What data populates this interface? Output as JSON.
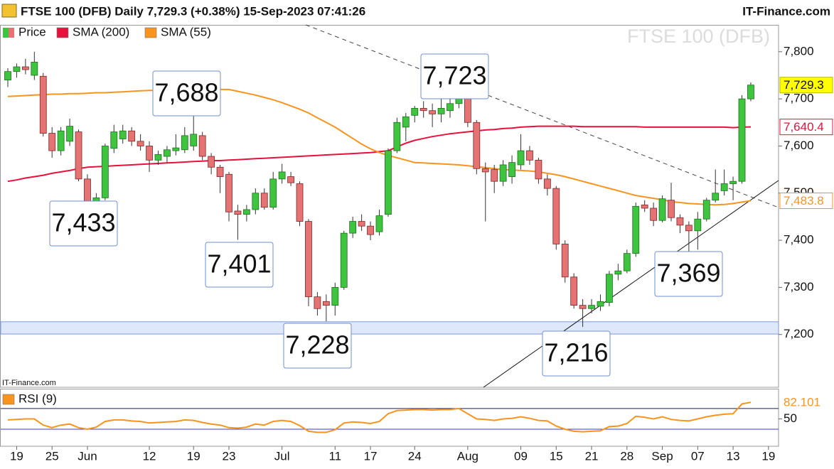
{
  "chart_data": [
    {
      "type": "candlestick",
      "title": "FTSE 100 (DFB) Daily 7,729.3 (+0.38%) 15-Sep-2023 07:41:26",
      "source": "IT-Finance.com",
      "watermark": "FTSE 100 (DFB)",
      "price_name": "Price",
      "last_label": "7,729.3",
      "up_color": "#3ec43e",
      "down_color": "#e57373",
      "categories": [
        null,
        "19",
        null,
        null,
        null,
        "25",
        null,
        null,
        null,
        "Jun",
        null,
        null,
        null,
        null,
        null,
        null,
        "12",
        null,
        null,
        null,
        null,
        "19",
        null,
        null,
        null,
        "23",
        null,
        null,
        null,
        null,
        null,
        "Jul",
        null,
        null,
        null,
        null,
        null,
        "11",
        null,
        null,
        null,
        "17",
        null,
        null,
        null,
        null,
        "24",
        null,
        null,
        null,
        null,
        null,
        "Aug",
        null,
        null,
        null,
        null,
        null,
        "09",
        null,
        null,
        null,
        "15",
        null,
        null,
        null,
        "21",
        null,
        null,
        null,
        "28",
        null,
        null,
        null,
        "Sep",
        null,
        null,
        null,
        "07",
        null,
        null,
        null,
        "13",
        null,
        null,
        null,
        "19"
      ],
      "ohlc": [
        [
          7740,
          7765,
          7725,
          7758
        ],
        [
          7758,
          7775,
          7745,
          7768
        ],
        [
          7768,
          7785,
          7752,
          7762
        ],
        [
          7750,
          7800,
          7740,
          7778
        ],
        [
          7748,
          7755,
          7620,
          7627
        ],
        [
          7627,
          7640,
          7575,
          7590
        ],
        [
          7590,
          7640,
          7580,
          7632
        ],
        [
          7610,
          7658,
          7600,
          7642
        ],
        [
          7630,
          7635,
          7525,
          7530
        ],
        [
          7530,
          7540,
          7433,
          7445
        ],
        [
          7445,
          7500,
          7440,
          7490
        ],
        [
          7490,
          7605,
          7485,
          7600
        ],
        [
          7595,
          7645,
          7585,
          7630
        ],
        [
          7615,
          7645,
          7605,
          7632
        ],
        [
          7632,
          7640,
          7600,
          7610
        ],
        [
          7610,
          7625,
          7590,
          7600
        ],
        [
          7600,
          7610,
          7545,
          7570
        ],
        [
          7570,
          7590,
          7560,
          7582
        ],
        [
          7578,
          7600,
          7565,
          7592
        ],
        [
          7590,
          7625,
          7580,
          7596
        ],
        [
          7592,
          7640,
          7585,
          7622
        ],
        [
          7600,
          7688,
          7590,
          7625
        ],
        [
          7622,
          7630,
          7570,
          7578
        ],
        [
          7578,
          7585,
          7540,
          7555
        ],
        [
          7555,
          7560,
          7500,
          7535
        ],
        [
          7540,
          7545,
          7440,
          7460
        ],
        [
          7462,
          7475,
          7401,
          7455
        ],
        [
          7455,
          7475,
          7440,
          7465
        ],
        [
          7465,
          7510,
          7455,
          7500
        ],
        [
          7500,
          7510,
          7465,
          7470
        ],
        [
          7470,
          7545,
          7465,
          7530
        ],
        [
          7530,
          7562,
          7520,
          7545
        ],
        [
          7535,
          7545,
          7515,
          7522
        ],
        [
          7520,
          7525,
          7430,
          7440
        ],
        [
          7440,
          7445,
          7260,
          7280
        ],
        [
          7280,
          7290,
          7240,
          7255
        ],
        [
          7270,
          7285,
          7228,
          7262
        ],
        [
          7262,
          7310,
          7240,
          7300
        ],
        [
          7300,
          7420,
          7295,
          7415
        ],
        [
          7415,
          7450,
          7405,
          7440
        ],
        [
          7440,
          7455,
          7420,
          7430
        ],
        [
          7430,
          7440,
          7400,
          7412
        ],
        [
          7418,
          7465,
          7410,
          7452
        ],
        [
          7455,
          7595,
          7450,
          7590
        ],
        [
          7590,
          7660,
          7585,
          7650
        ],
        [
          7640,
          7670,
          7610,
          7662
        ],
        [
          7665,
          7685,
          7650,
          7680
        ],
        [
          7680,
          7695,
          7660,
          7675
        ],
        [
          7675,
          7690,
          7640,
          7668
        ],
        [
          7668,
          7700,
          7650,
          7680
        ],
        [
          7675,
          7710,
          7660,
          7690
        ],
        [
          7690,
          7723,
          7680,
          7705
        ],
        [
          7700,
          7705,
          7640,
          7650
        ],
        [
          7650,
          7655,
          7540,
          7552
        ],
        [
          7552,
          7565,
          7440,
          7545
        ],
        [
          7550,
          7560,
          7500,
          7525
        ],
        [
          7525,
          7570,
          7515,
          7560
        ],
        [
          7535,
          7580,
          7520,
          7565
        ],
        [
          7560,
          7625,
          7550,
          7590
        ],
        [
          7590,
          7600,
          7560,
          7570
        ],
        [
          7570,
          7575,
          7520,
          7530
        ],
        [
          7530,
          7540,
          7495,
          7510
        ],
        [
          7510,
          7515,
          7380,
          7392
        ],
        [
          7392,
          7400,
          7310,
          7322
        ],
        [
          7322,
          7330,
          7255,
          7262
        ],
        [
          7262,
          7275,
          7216,
          7255
        ],
        [
          7255,
          7275,
          7245,
          7262
        ],
        [
          7260,
          7285,
          7250,
          7270
        ],
        [
          7268,
          7335,
          7260,
          7328
        ],
        [
          7328,
          7350,
          7315,
          7335
        ],
        [
          7335,
          7380,
          7330,
          7372
        ],
        [
          7372,
          7480,
          7365,
          7472
        ],
        [
          7475,
          7485,
          7460,
          7468
        ],
        [
          7468,
          7480,
          7430,
          7442
        ],
        [
          7442,
          7495,
          7438,
          7488
        ],
        [
          7485,
          7522,
          7440,
          7448
        ],
        [
          7448,
          7455,
          7415,
          7432
        ],
        [
          7432,
          7440,
          7369,
          7420
        ],
        [
          7420,
          7460,
          7380,
          7445
        ],
        [
          7445,
          7490,
          7440,
          7485
        ],
        [
          7485,
          7550,
          7480,
          7500
        ],
        [
          7505,
          7550,
          7495,
          7520
        ],
        [
          7520,
          7535,
          7485,
          7525
        ],
        [
          7525,
          7708,
          7520,
          7700
        ],
        [
          7700,
          7735,
          7695,
          7729.3
        ],
        null,
        null
      ],
      "series": [
        {
          "name": "SMA (200)",
          "color": "#e8103c",
          "last_label": "7,640.4",
          "values": [
            7525,
            7528,
            7532,
            7535,
            7538,
            7542,
            7545,
            7548,
            7552,
            7555,
            7556,
            7557,
            7558,
            7559,
            7560,
            7561,
            7562,
            7563,
            7564,
            7565,
            7566,
            7567,
            7568,
            7569,
            7569,
            7570,
            7571,
            7572,
            7573,
            7574,
            7575,
            7576,
            7577,
            7578,
            7579,
            7580,
            7581,
            7582,
            7583,
            7584,
            7585,
            7586,
            7588,
            7590,
            7598,
            7606,
            7612,
            7616,
            7620,
            7623,
            7626,
            7628,
            7630,
            7632,
            7634,
            7635,
            7637,
            7638,
            7640,
            7641,
            7642,
            7642,
            7642,
            7642,
            7642,
            7641,
            7641,
            7641,
            7641,
            7641,
            7641,
            7641,
            7640,
            7640,
            7640,
            7640,
            7640,
            7640,
            7640,
            7640,
            7640,
            7640,
            7639,
            7640,
            7640.4,
            null,
            null
          ]
        },
        {
          "name": "SMA (55)",
          "color": "#f7941d",
          "last_label": "7,483.8",
          "values": [
            7705,
            7706,
            7707,
            7708,
            7709,
            7710,
            7710,
            7711,
            7711,
            7712,
            7713,
            7713,
            7714,
            7715,
            7716,
            7717,
            7718,
            7718,
            7719,
            7719,
            7720,
            7720,
            7720,
            7720,
            7720,
            7720,
            7716,
            7712,
            7708,
            7703,
            7698,
            7692,
            7685,
            7678,
            7670,
            7660,
            7650,
            7640,
            7628,
            7616,
            7604,
            7594,
            7586,
            7580,
            7575,
            7570,
            7565,
            7564,
            7563,
            7562,
            7561,
            7560,
            7558,
            7556,
            7554,
            7552,
            7550,
            7549,
            7548,
            7547,
            7545,
            7542,
            7539,
            7535,
            7530,
            7525,
            7520,
            7515,
            7510,
            7505,
            7500,
            7495,
            7492,
            7489,
            7486,
            7482,
            7480,
            7478,
            7477,
            7476,
            7475,
            7476,
            7478,
            7481,
            7483.8,
            null,
            null
          ]
        }
      ],
      "annotations": [
        {
          "value": 7433,
          "label": "7,433"
        },
        {
          "value": 7688,
          "label": "7,688"
        },
        {
          "value": 7723,
          "label": "7,723"
        },
        {
          "value": 7401,
          "label": "7,401"
        },
        {
          "value": 7228,
          "label": "7,228"
        },
        {
          "value": 7216,
          "label": "7,216"
        },
        {
          "value": 7369,
          "label": "7,369"
        }
      ],
      "support_zone": [
        7201,
        7227
      ],
      "ylim": [
        7088,
        7857
      ],
      "yticks": [
        {
          "value": 7200,
          "label": "7,200"
        },
        {
          "value": 7300,
          "label": "7,300"
        },
        {
          "value": 7400,
          "label": "7,400"
        },
        {
          "value": 7500,
          "label": "7,500"
        },
        {
          "value": 7600,
          "label": "7,600"
        },
        {
          "value": 7700,
          "label": "7,700"
        },
        {
          "value": 7800,
          "label": "7,800"
        }
      ]
    },
    {
      "type": "line",
      "name": "RSI (9)",
      "color": "#f7941d",
      "last_label": "82.101",
      "values": [
        48,
        49,
        50,
        50,
        38,
        33,
        38,
        40,
        33,
        30,
        34,
        45,
        48,
        48,
        46,
        45,
        42,
        43,
        44,
        45,
        48,
        47,
        43,
        40,
        38,
        33,
        32,
        34,
        40,
        38,
        45,
        47,
        45,
        37,
        26,
        24,
        24,
        29,
        42,
        44,
        43,
        41,
        45,
        60,
        66,
        67,
        68,
        68,
        67,
        68,
        68,
        70,
        60,
        50,
        49,
        47,
        50,
        51,
        54,
        51,
        47,
        46,
        36,
        30,
        26,
        25,
        26,
        27,
        35,
        36,
        41,
        55,
        53,
        50,
        54,
        49,
        47,
        46,
        50,
        54,
        57,
        59,
        60,
        79,
        82.101,
        null,
        null
      ],
      "levels": [
        70,
        30
      ],
      "ylim": [
        -3,
        107
      ],
      "yticks": [
        50
      ]
    }
  ]
}
